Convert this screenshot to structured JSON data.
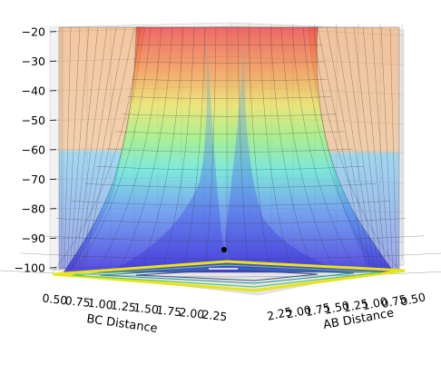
{
  "chart_data": {
    "type": "surface3d",
    "xlabel": "AB Distance",
    "ylabel": "BC Distance",
    "zlabel": "",
    "title": "",
    "x_ticks": [
      "0.50",
      "0.75",
      "1.00",
      "1.25",
      "1.50",
      "1.75",
      "2.00",
      "2.25"
    ],
    "y_ticks": [
      "0.50",
      "0.75",
      "1.00",
      "1.25",
      "1.50",
      "1.75",
      "2.00",
      "2.25"
    ],
    "z_ticks": [
      "−20",
      "−30",
      "−40",
      "−50",
      "−60",
      "−70",
      "−80",
      "−90",
      "−100"
    ],
    "xlim": [
      0.5,
      2.4
    ],
    "ylim": [
      0.5,
      2.4
    ],
    "zlim": [
      -105,
      -20
    ],
    "colormap": "jet",
    "contour_colormap": "viridis",
    "surface_alpha": 0.5,
    "marked_point": {
      "x": 0.74,
      "y": 2.4,
      "z": -95.5
    },
    "grid": true
  }
}
